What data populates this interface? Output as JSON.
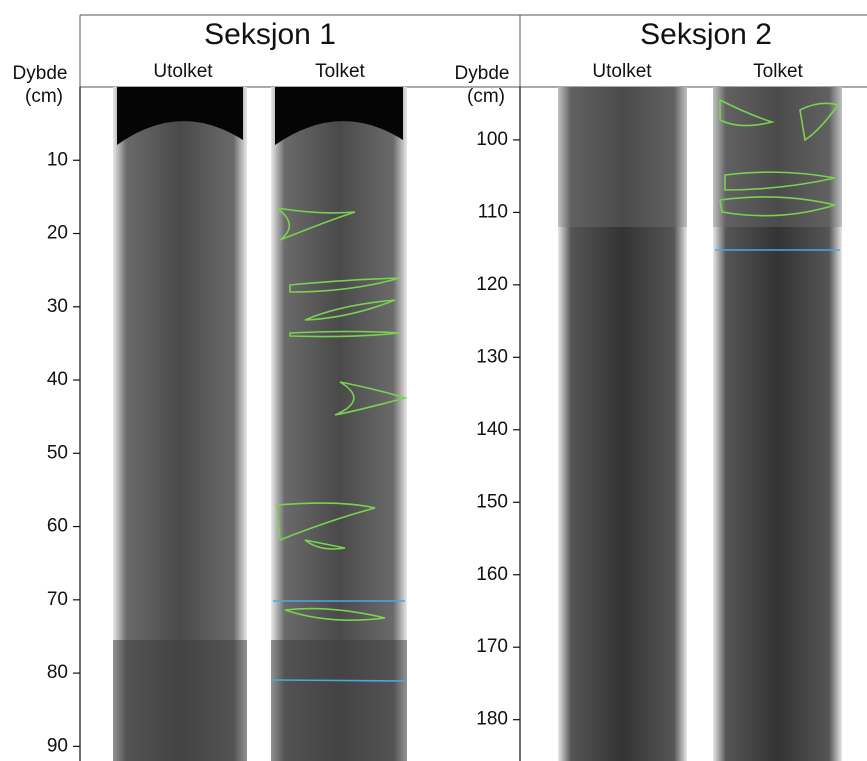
{
  "sections": [
    {
      "title": "Seksjon 1",
      "axis_label": "Dybde",
      "axis_unit": "(cm)",
      "columns": [
        "Utolket",
        "Tolket"
      ],
      "ylim": [
        0,
        92
      ],
      "yticks": [
        10,
        20,
        30,
        40,
        50,
        60,
        70,
        80,
        90
      ]
    },
    {
      "title": "Seksjon 2",
      "axis_label": "Dybde",
      "axis_unit": "(cm)",
      "columns": [
        "Utolket",
        "Tolket"
      ],
      "ylim": [
        92.7,
        185.7
      ],
      "yticks": [
        100,
        110,
        120,
        130,
        140,
        150,
        160,
        170,
        180
      ]
    }
  ]
}
